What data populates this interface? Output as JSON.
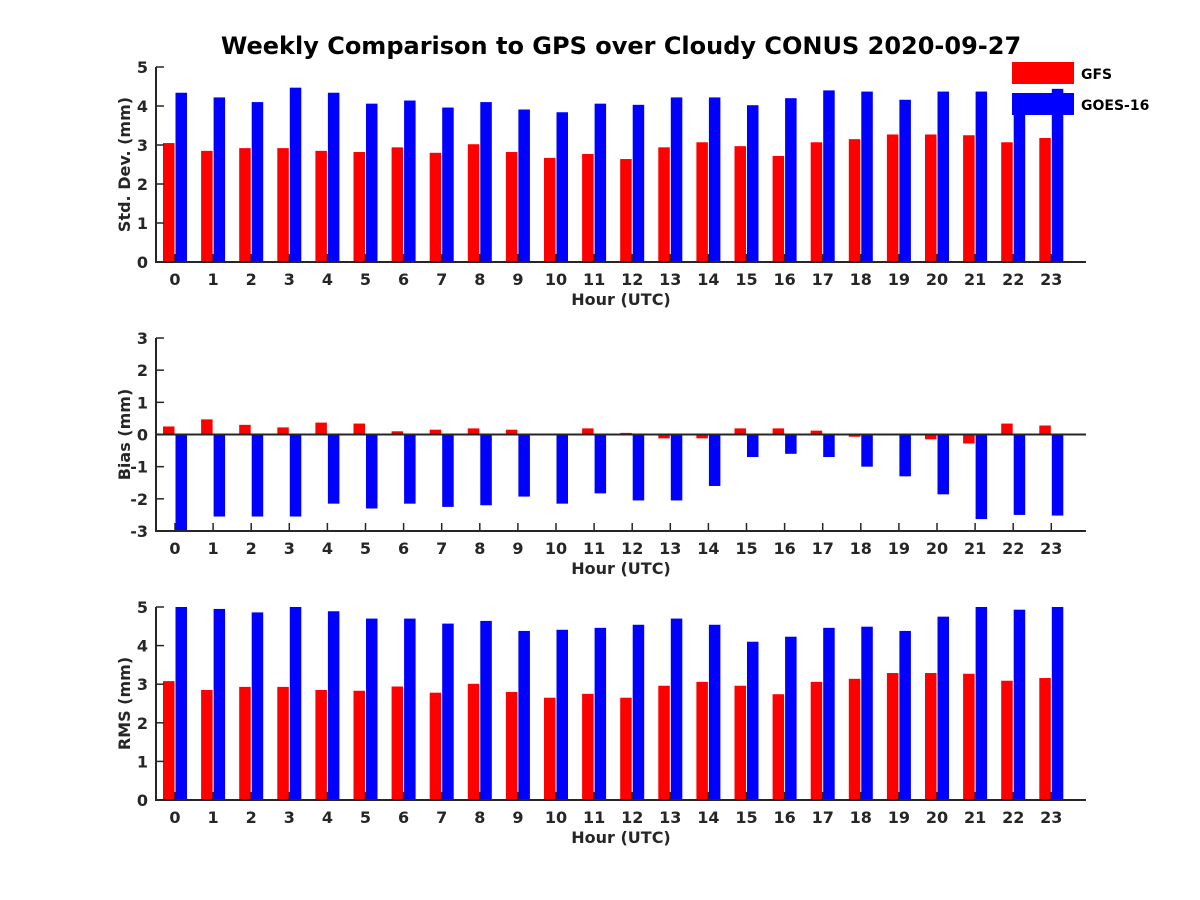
{
  "title": "Weekly Comparison to GPS over Cloudy CONUS 2020-09-27",
  "colors": {
    "GFS": "#ff0000",
    "GOES-16": "#0000ff",
    "axis": "#262626"
  },
  "legend": {
    "placement": "top-right",
    "entries": [
      "GFS",
      "GOES-16"
    ]
  },
  "chart_data": [
    {
      "type": "bar",
      "id": "stddev",
      "ylabel": "Std. Dev. (mm)",
      "xlabel": "Hour (UTC)",
      "ylim": [
        0,
        5
      ],
      "yticks": [
        0,
        1,
        2,
        3,
        4,
        5
      ],
      "categories": [
        "0",
        "1",
        "2",
        "3",
        "4",
        "5",
        "6",
        "7",
        "8",
        "9",
        "10",
        "11",
        "12",
        "13",
        "14",
        "15",
        "16",
        "17",
        "18",
        "19",
        "20",
        "21",
        "22",
        "23"
      ],
      "series": [
        {
          "name": "GFS",
          "values": [
            3.05,
            2.85,
            2.92,
            2.92,
            2.85,
            2.82,
            2.94,
            2.8,
            3.02,
            2.82,
            2.67,
            2.77,
            2.64,
            2.94,
            3.07,
            2.97,
            2.72,
            3.07,
            3.15,
            3.27,
            3.27,
            3.25,
            3.07,
            3.18
          ]
        },
        {
          "name": "GOES-16",
          "values": [
            4.34,
            4.22,
            4.1,
            4.47,
            4.34,
            4.06,
            4.14,
            3.96,
            4.1,
            3.91,
            3.84,
            4.06,
            4.03,
            4.22,
            4.22,
            4.02,
            4.2,
            4.4,
            4.37,
            4.16,
            4.37,
            4.37,
            4.22,
            4.44
          ]
        }
      ]
    },
    {
      "type": "bar",
      "id": "bias",
      "ylabel": "Bias (mm)",
      "xlabel": "Hour (UTC)",
      "ylim": [
        -3,
        3
      ],
      "yticks": [
        -3,
        -2,
        -1,
        0,
        1,
        2,
        3
      ],
      "zero_line": true,
      "categories": [
        "0",
        "1",
        "2",
        "3",
        "4",
        "5",
        "6",
        "7",
        "8",
        "9",
        "10",
        "11",
        "12",
        "13",
        "14",
        "15",
        "16",
        "17",
        "18",
        "19",
        "20",
        "21",
        "22",
        "23"
      ],
      "series": [
        {
          "name": "GFS",
          "values": [
            0.25,
            0.47,
            0.3,
            0.22,
            0.37,
            0.34,
            0.1,
            0.15,
            0.19,
            0.15,
            0.0,
            0.19,
            0.05,
            -0.12,
            -0.12,
            0.19,
            0.19,
            0.12,
            -0.07,
            0.0,
            -0.15,
            -0.28,
            0.34,
            0.28
          ]
        },
        {
          "name": "GOES-16",
          "values": [
            -3.0,
            -2.55,
            -2.55,
            -2.55,
            -2.15,
            -2.3,
            -2.15,
            -2.25,
            -2.2,
            -1.93,
            -2.15,
            -1.83,
            -2.05,
            -2.05,
            -1.6,
            -0.7,
            -0.6,
            -0.7,
            -1.0,
            -1.3,
            -1.86,
            -2.63,
            -2.5,
            -2.52
          ]
        }
      ]
    },
    {
      "type": "bar",
      "id": "rms",
      "ylabel": "RMS (mm)",
      "xlabel": "Hour (UTC)",
      "ylim": [
        0,
        5
      ],
      "yticks": [
        0,
        1,
        2,
        3,
        4,
        5
      ],
      "categories": [
        "0",
        "1",
        "2",
        "3",
        "4",
        "5",
        "6",
        "7",
        "8",
        "9",
        "10",
        "11",
        "12",
        "13",
        "14",
        "15",
        "16",
        "17",
        "18",
        "19",
        "20",
        "21",
        "22",
        "23"
      ],
      "series": [
        {
          "name": "GFS",
          "values": [
            3.08,
            2.85,
            2.93,
            2.93,
            2.85,
            2.83,
            2.94,
            2.78,
            3.01,
            2.8,
            2.65,
            2.75,
            2.65,
            2.96,
            3.06,
            2.96,
            2.74,
            3.06,
            3.14,
            3.29,
            3.29,
            3.27,
            3.09,
            3.16
          ]
        },
        {
          "name": "GOES-16",
          "values": [
            5.0,
            4.95,
            4.86,
            5.0,
            4.89,
            4.7,
            4.7,
            4.57,
            4.64,
            4.38,
            4.41,
            4.46,
            4.54,
            4.7,
            4.54,
            4.1,
            4.23,
            4.46,
            4.49,
            4.38,
            4.75,
            5.0,
            4.93,
            5.0
          ]
        }
      ]
    }
  ]
}
